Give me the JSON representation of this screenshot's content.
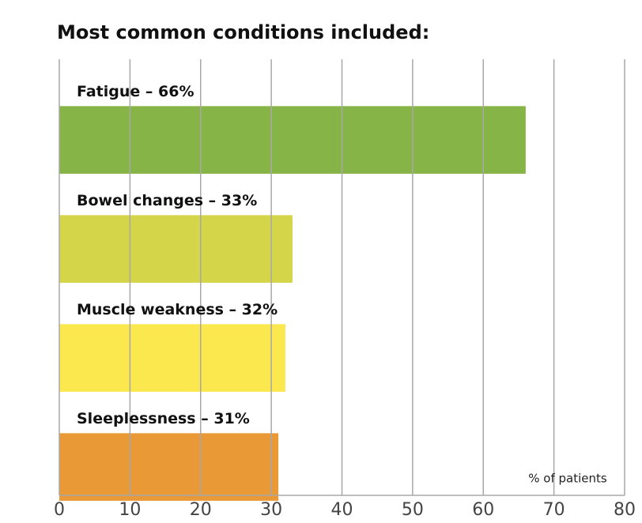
{
  "chart_data": {
    "type": "hbar",
    "title": "Most common conditions included:",
    "categories": [
      "Fatigue – 66%",
      "Bowel changes – 33%",
      "Muscle weakness – 32%",
      "Sleeplessness – 31%"
    ],
    "values": [
      66,
      33,
      32,
      31
    ],
    "colors": [
      "#86b446",
      "#d4d548",
      "#fbe84e",
      "#e99a36"
    ],
    "x_label": "% of patients",
    "xlim": [
      0,
      80
    ],
    "xticks": [
      0,
      10,
      20,
      30,
      40,
      50,
      60,
      70,
      80
    ],
    "grid": true
  }
}
